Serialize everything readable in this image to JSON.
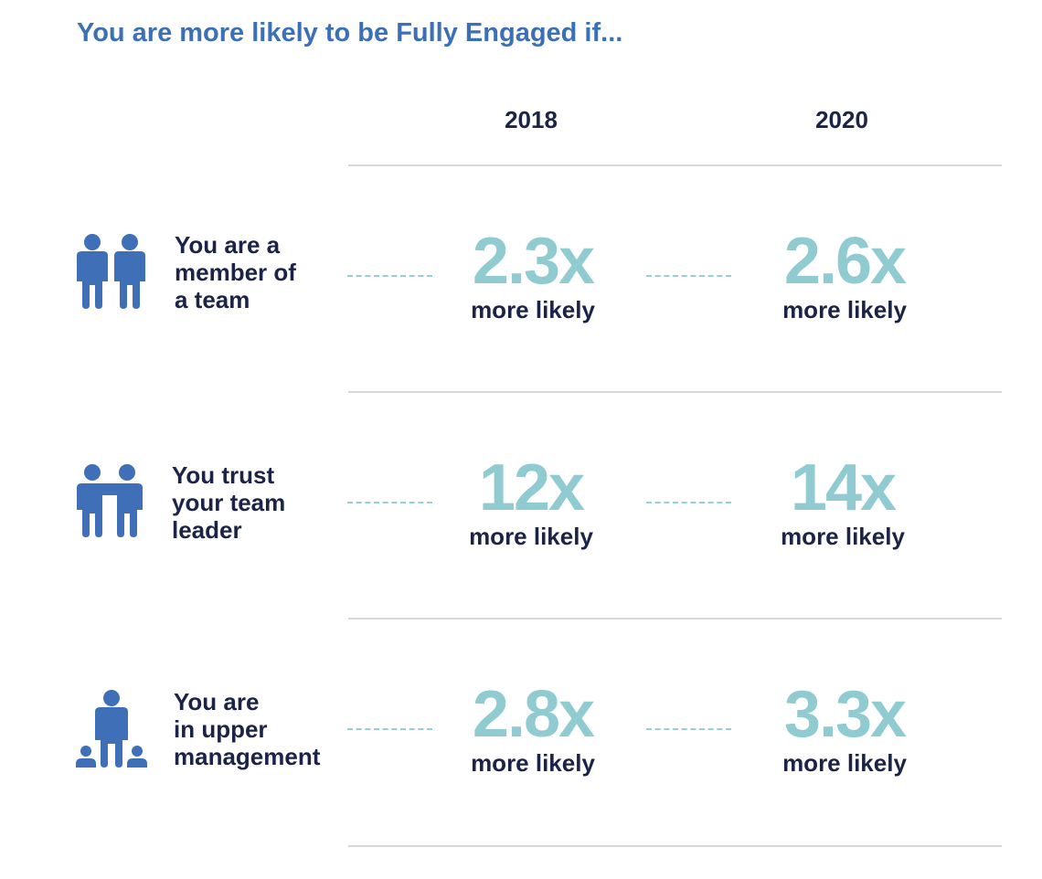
{
  "title": "You are more likely to be Fully Engaged if...",
  "colors": {
    "title": "#3b6fb6",
    "icon": "#3f6fb7",
    "value": "#8fcbd0",
    "text": "#1b2346",
    "dash": "#97cfd4",
    "rule": "#d7d7d7"
  },
  "chart_data": {
    "type": "table",
    "title": "You are more likely to be Fully Engaged if...",
    "columns": [
      "2018",
      "2020"
    ],
    "rows": [
      {
        "icon": "team-members-icon",
        "label_lines": [
          "You are a",
          "member of",
          "a team"
        ],
        "values": [
          "2.3x",
          "2.6x"
        ],
        "numeric": [
          2.3,
          2.6
        ],
        "suffix": "more likely"
      },
      {
        "icon": "trust-leader-icon",
        "label_lines": [
          "You trust",
          "your team",
          "leader"
        ],
        "values": [
          "12x",
          "14x"
        ],
        "numeric": [
          12,
          14
        ],
        "suffix": "more likely"
      },
      {
        "icon": "upper-management-icon",
        "label_lines": [
          "You are",
          "in upper",
          "management"
        ],
        "values": [
          "2.8x",
          "3.3x"
        ],
        "numeric": [
          2.8,
          3.3
        ],
        "suffix": "more likely"
      }
    ]
  }
}
